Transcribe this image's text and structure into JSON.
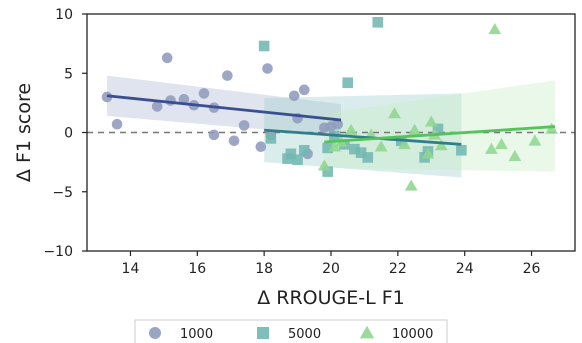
{
  "chart_data": {
    "type": "scatter",
    "title": "",
    "xlabel": "Δ RROUGE-L F1",
    "ylabel": "Δ F1 score",
    "xlim": [
      12.7,
      27.3
    ],
    "ylim": [
      -10,
      10
    ],
    "xticks": [
      14,
      16,
      18,
      20,
      22,
      24,
      26
    ],
    "yticks": [
      -10,
      -5,
      0,
      5,
      10
    ],
    "reference_line": {
      "y": 0,
      "style": "dashed"
    },
    "grid": false,
    "legend_position": "bottom-center",
    "series": [
      {
        "name": "1000",
        "marker": "circle",
        "color": "#8f9bbd",
        "line_color": "#3a4f8f",
        "band_color": "#aeb9d3",
        "points": [
          [
            13.3,
            3.0
          ],
          [
            13.6,
            0.7
          ],
          [
            14.8,
            2.2
          ],
          [
            15.1,
            6.3
          ],
          [
            15.2,
            2.7
          ],
          [
            15.6,
            2.8
          ],
          [
            15.9,
            2.3
          ],
          [
            16.2,
            3.3
          ],
          [
            16.5,
            2.1
          ],
          [
            16.5,
            -0.2
          ],
          [
            16.9,
            4.8
          ],
          [
            17.1,
            -0.7
          ],
          [
            17.4,
            0.6
          ],
          [
            17.9,
            -1.2
          ],
          [
            18.1,
            5.4
          ],
          [
            18.2,
            -0.2
          ],
          [
            18.9,
            3.1
          ],
          [
            19.0,
            1.2
          ],
          [
            19.2,
            3.6
          ],
          [
            19.3,
            -1.8
          ],
          [
            19.8,
            0.4
          ],
          [
            20.0,
            0.5
          ],
          [
            20.2,
            0.7
          ]
        ],
        "trend": {
          "x": [
            13.3,
            20.3
          ],
          "y": [
            3.1,
            1.05
          ]
        },
        "band": {
          "x": [
            13.3,
            20.3
          ],
          "upper": [
            4.8,
            2.4
          ],
          "lower": [
            1.4,
            -0.3
          ]
        }
      },
      {
        "name": "5000",
        "marker": "square",
        "color": "#72b7b2",
        "line_color": "#2e7f8a",
        "band_color": "#9ed0cc",
        "points": [
          [
            18.0,
            7.3
          ],
          [
            18.2,
            -0.5
          ],
          [
            18.7,
            -2.2
          ],
          [
            18.8,
            -1.8
          ],
          [
            19.0,
            -2.3
          ],
          [
            19.2,
            -1.5
          ],
          [
            19.9,
            -3.3
          ],
          [
            19.9,
            -1.3
          ],
          [
            20.1,
            -0.3
          ],
          [
            20.4,
            -1.0
          ],
          [
            20.5,
            4.2
          ],
          [
            20.7,
            -1.4
          ],
          [
            20.9,
            -1.7
          ],
          [
            21.1,
            -2.1
          ],
          [
            21.4,
            9.3
          ],
          [
            22.1,
            -0.7
          ],
          [
            22.8,
            -2.1
          ],
          [
            22.9,
            -1.6
          ],
          [
            23.2,
            0.3
          ],
          [
            23.9,
            -1.5
          ]
        ],
        "trend": {
          "x": [
            18.0,
            23.9
          ],
          "y": [
            0.2,
            -1.0
          ]
        },
        "band": {
          "x": [
            18.0,
            23.9
          ],
          "upper": [
            2.9,
            3.3
          ],
          "lower": [
            -2.5,
            -3.8
          ]
        }
      },
      {
        "name": "10000",
        "marker": "triangle",
        "color": "#8fd68f",
        "line_color": "#55c25b",
        "band_color": "#c6ecc3",
        "points": [
          [
            19.8,
            -2.8
          ],
          [
            20.1,
            -1.2
          ],
          [
            20.3,
            -0.8
          ],
          [
            20.6,
            0.2
          ],
          [
            21.2,
            -0.2
          ],
          [
            21.5,
            -1.2
          ],
          [
            21.9,
            1.6
          ],
          [
            22.2,
            -1.0
          ],
          [
            22.4,
            -4.5
          ],
          [
            22.5,
            0.2
          ],
          [
            22.9,
            -1.8
          ],
          [
            23.0,
            0.9
          ],
          [
            23.1,
            -0.2
          ],
          [
            23.3,
            -1.1
          ],
          [
            24.8,
            -1.4
          ],
          [
            24.9,
            8.7
          ],
          [
            25.1,
            -1.0
          ],
          [
            25.5,
            -2.0
          ],
          [
            26.1,
            -0.7
          ],
          [
            26.6,
            0.3
          ]
        ],
        "trend": {
          "x": [
            19.8,
            26.7
          ],
          "y": [
            -0.8,
            0.5
          ]
        },
        "band": {
          "x": [
            19.8,
            26.7
          ],
          "upper": [
            1.6,
            4.4
          ],
          "lower": [
            -3.0,
            -3.3
          ]
        }
      }
    ]
  }
}
